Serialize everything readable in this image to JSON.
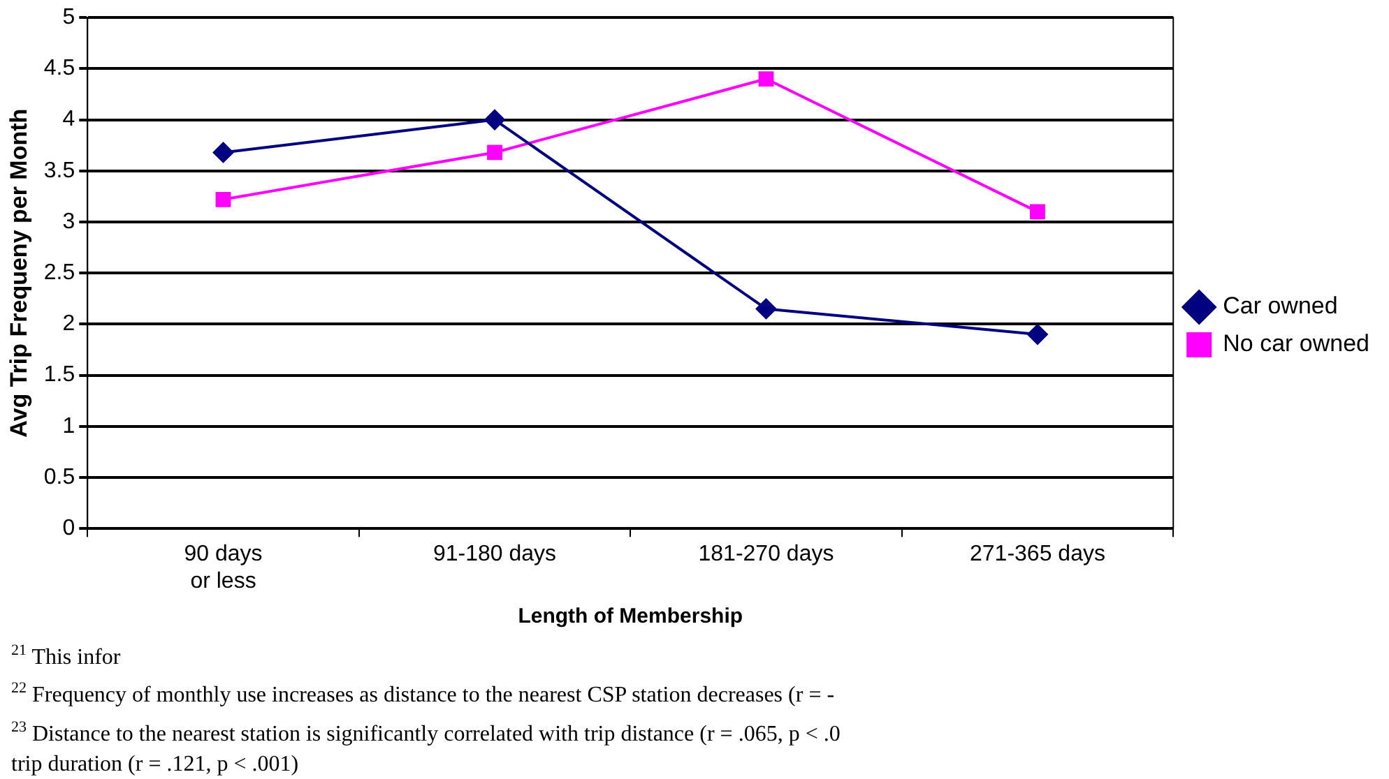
{
  "chart_data": {
    "type": "line",
    "xlabel": "Length of Membership",
    "ylabel": "Avg Trip Frequeny per Month",
    "categories": [
      "90 days or less",
      "91-180 days",
      "181-270 days",
      "271-365 days"
    ],
    "series": [
      {
        "name": "Car owned",
        "color": "#000080",
        "marker": "diamond",
        "values": [
          3.68,
          4.0,
          2.15,
          1.9
        ]
      },
      {
        "name": "No car owned",
        "color": "#ff00ff",
        "marker": "square",
        "values": [
          3.22,
          3.68,
          4.4,
          3.1
        ]
      }
    ],
    "ylim": [
      0,
      5
    ],
    "yticks": [
      0,
      0.5,
      1,
      1.5,
      2,
      2.5,
      3,
      3.5,
      4,
      4.5,
      5
    ],
    "grid": "y",
    "legend": "right",
    "line_style": "solid",
    "annotations": [
      "$^{21}$ This infor",
      "$^{22}$ Frequency of monthly use increases as distance to the nearest CSP station decreases (r = -",
      "$^{23}$ Distance to the nearest station is significantly correlated with trip distance (r = .065, p < .0",
      "trip duration (r = .121, p < .001)"
    ]
  }
}
